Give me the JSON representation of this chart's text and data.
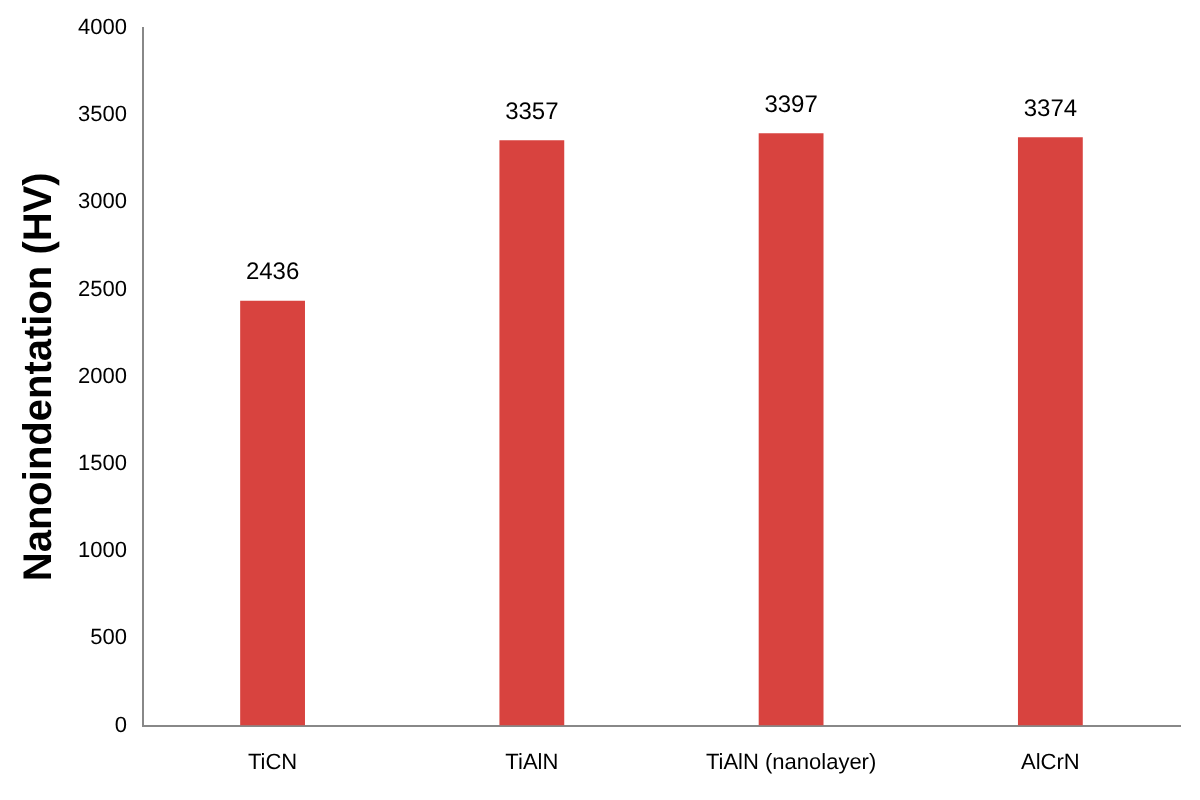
{
  "chart_data": {
    "type": "bar",
    "ylabel": "Nanoindentation (HV)",
    "categories": [
      "TiCN",
      "TiAlN",
      "TiAlN (nanolayer)",
      "AlCrN"
    ],
    "values": [
      2436,
      3357,
      3397,
      3374
    ],
    "color": "#d8433f",
    "ylim": [
      0,
      4000
    ],
    "yticks": [
      0,
      500,
      1000,
      1500,
      2000,
      2500,
      3000,
      3500,
      4000
    ],
    "grid": false,
    "legend": false,
    "data_labels": true
  }
}
